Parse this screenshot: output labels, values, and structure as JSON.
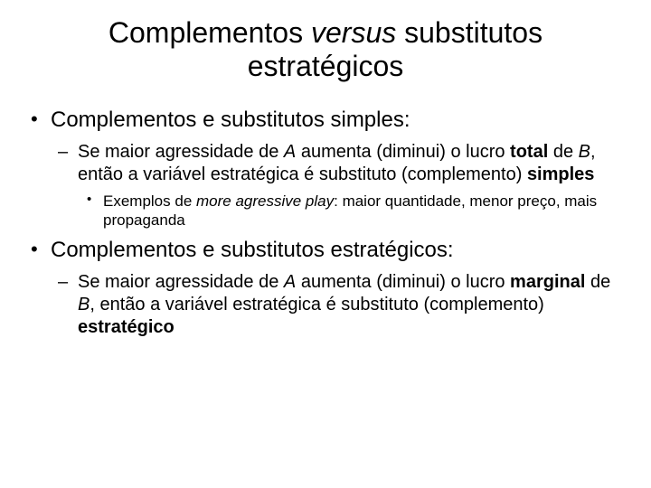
{
  "title_pre": "Complementos ",
  "title_italic": "versus",
  "title_post": " substitutos estratégicos",
  "bullets": [
    {
      "text": "Complementos e substitutos simples:",
      "sub": [
        {
          "runs": [
            {
              "t": "Se maior agressidade de "
            },
            {
              "t": "A",
              "i": true
            },
            {
              "t": " aumenta (diminui) o lucro "
            },
            {
              "t": "total",
              "b": true
            },
            {
              "t": " de "
            },
            {
              "t": "B",
              "i": true
            },
            {
              "t": ", então a variável estratégica é substituto (complemento) "
            },
            {
              "t": "simples",
              "b": true
            }
          ],
          "sub": [
            {
              "runs": [
                {
                  "t": "Exemplos de "
                },
                {
                  "t": "more agressive play",
                  "i": true
                },
                {
                  "t": ": maior quantidade, menor preço, mais propaganda"
                }
              ]
            }
          ]
        }
      ]
    },
    {
      "text": "Complementos e substitutos estratégicos:",
      "sub": [
        {
          "runs": [
            {
              "t": "Se maior agressidade de "
            },
            {
              "t": "A",
              "i": true
            },
            {
              "t": " aumenta (diminui) o lucro "
            },
            {
              "t": "marginal",
              "b": true
            },
            {
              "t": " de "
            },
            {
              "t": "B",
              "i": true
            },
            {
              "t": ", então a variável estratégica é substituto (complemento) "
            },
            {
              "t": "estratégico",
              "b": true
            }
          ]
        }
      ]
    }
  ],
  "colors": {
    "background": "#ffffff",
    "text": "#000000"
  },
  "typography": {
    "title_fontsize": 32,
    "level1_fontsize": 24,
    "level2_fontsize": 20,
    "level3_fontsize": 17,
    "font_family": "Arial"
  }
}
